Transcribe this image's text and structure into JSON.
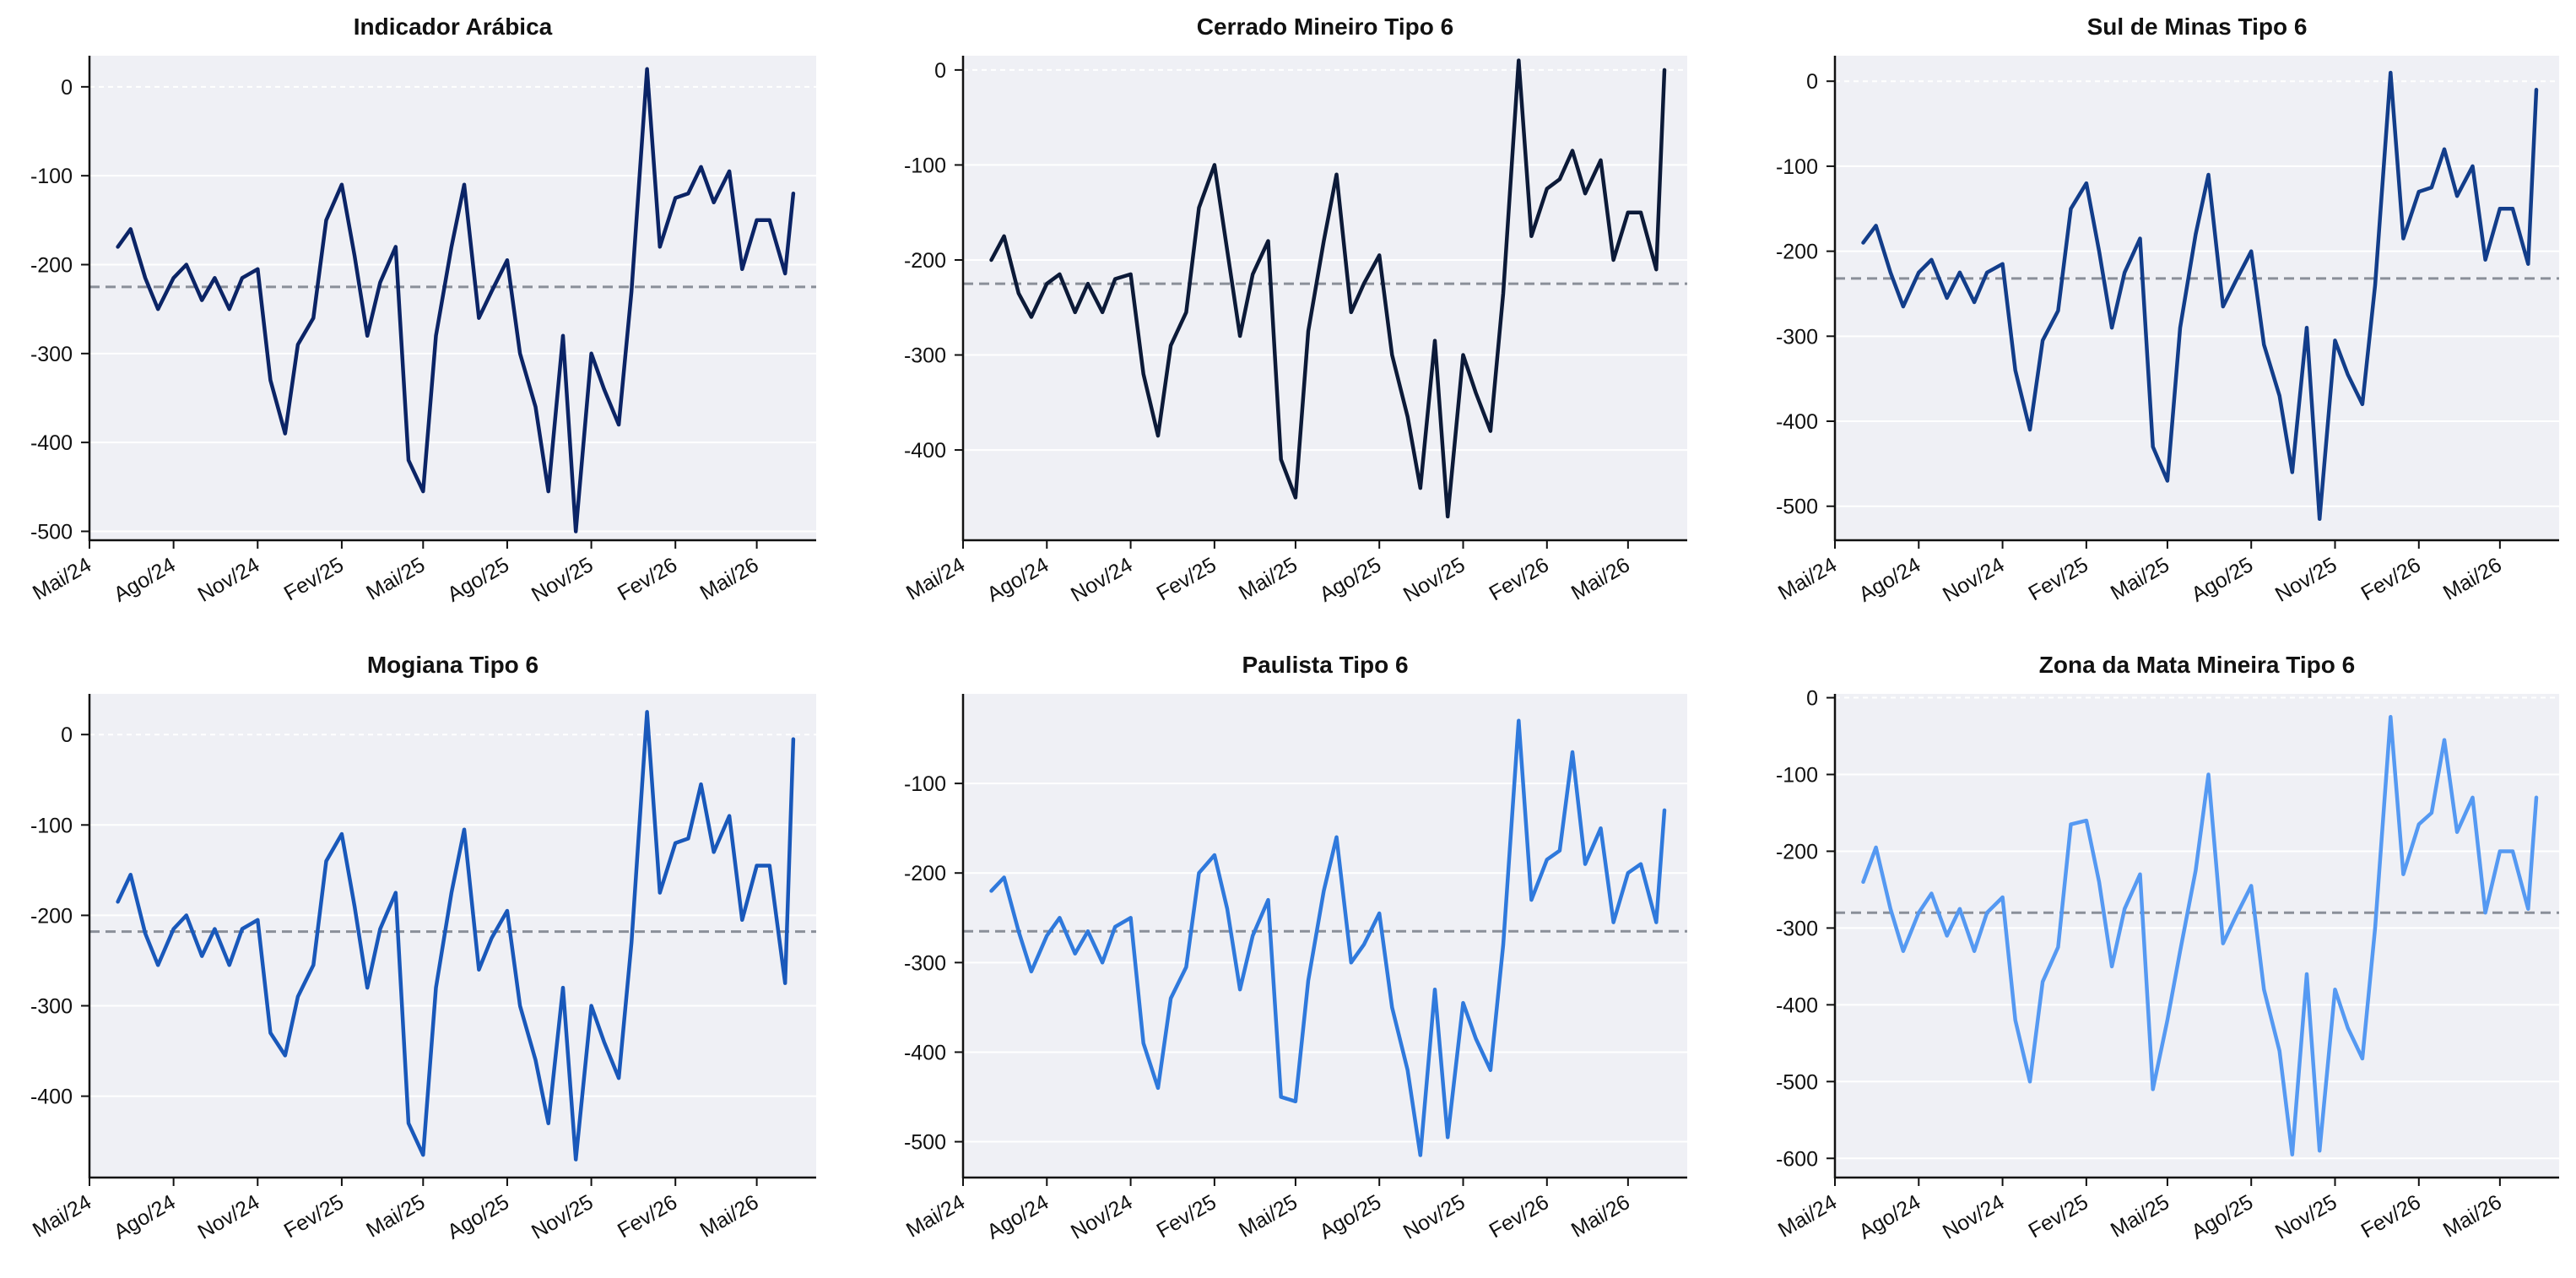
{
  "chart_data": [
    {
      "type": "line",
      "title": "Indicador Arábica",
      "color": "#0b2466",
      "mean": -225,
      "ylim": [
        -510,
        35
      ],
      "yticks": [
        0,
        -100,
        -200,
        -300,
        -400,
        -500
      ],
      "xlim": [
        "2024-05-01",
        "2026-07-05"
      ],
      "xticks": [
        "Mai/24",
        "Ago/24",
        "Nov/24",
        "Fev/25",
        "Mai/25",
        "Ago/25",
        "Nov/25",
        "Fev/26",
        "Mai/26"
      ],
      "series": [
        {
          "x": [
            "2024-06-01",
            "2024-06-15",
            "2024-07-01",
            "2024-07-15",
            "2024-08-01",
            "2024-08-15",
            "2024-09-01",
            "2024-09-15",
            "2024-10-01",
            "2024-10-15",
            "2024-11-01",
            "2024-11-15",
            "2024-12-01",
            "2024-12-15",
            "2025-01-01",
            "2025-01-15",
            "2025-02-01",
            "2025-02-15",
            "2025-03-01",
            "2025-03-15",
            "2025-04-01",
            "2025-04-15",
            "2025-05-01",
            "2025-05-15",
            "2025-06-01",
            "2025-06-15",
            "2025-07-01",
            "2025-07-15",
            "2025-08-01",
            "2025-08-15",
            "2025-09-01",
            "2025-09-15",
            "2025-10-01",
            "2025-10-15",
            "2025-11-01",
            "2025-11-15",
            "2025-12-01",
            "2025-12-15",
            "2026-01-01",
            "2026-01-15",
            "2026-02-01",
            "2026-02-15",
            "2026-03-01",
            "2026-03-15",
            "2026-04-01",
            "2026-04-15",
            "2026-05-01",
            "2026-05-15",
            "2026-06-01",
            "2026-06-10"
          ],
          "values": [
            -180,
            -160,
            -215,
            -250,
            -215,
            -200,
            -240,
            -215,
            -250,
            -215,
            -205,
            -330,
            -390,
            -290,
            -260,
            -150,
            -110,
            -190,
            -280,
            -220,
            -180,
            -420,
            -455,
            -280,
            -180,
            -110,
            -260,
            -230,
            -195,
            -300,
            -360,
            -455,
            -280,
            -500,
            -300,
            -340,
            -380,
            -230,
            20,
            -180,
            -125,
            -120,
            -90,
            -130,
            -95,
            -205,
            -150,
            -150,
            -210,
            -120
          ]
        }
      ]
    },
    {
      "type": "line",
      "title": "Cerrado Mineiro Tipo 6",
      "color": "#0c1a38",
      "mean": -225,
      "ylim": [
        -495,
        15
      ],
      "yticks": [
        0,
        -100,
        -200,
        -300,
        -400
      ],
      "xlim": [
        "2024-05-01",
        "2026-07-05"
      ],
      "xticks": [
        "Mai/24",
        "Ago/24",
        "Nov/24",
        "Fev/25",
        "Mai/25",
        "Ago/25",
        "Nov/25",
        "Fev/26",
        "Mai/26"
      ],
      "series": [
        {
          "x": [
            "2024-06-01",
            "2024-06-15",
            "2024-07-01",
            "2024-07-15",
            "2024-08-01",
            "2024-08-15",
            "2024-09-01",
            "2024-09-15",
            "2024-10-01",
            "2024-10-15",
            "2024-11-01",
            "2024-11-15",
            "2024-12-01",
            "2024-12-15",
            "2025-01-01",
            "2025-01-15",
            "2025-02-01",
            "2025-02-15",
            "2025-03-01",
            "2025-03-15",
            "2025-04-01",
            "2025-04-15",
            "2025-05-01",
            "2025-05-15",
            "2025-06-01",
            "2025-06-15",
            "2025-07-01",
            "2025-07-15",
            "2025-08-01",
            "2025-08-15",
            "2025-09-01",
            "2025-09-15",
            "2025-10-01",
            "2025-10-15",
            "2025-11-01",
            "2025-11-15",
            "2025-12-01",
            "2025-12-15",
            "2026-01-01",
            "2026-01-15",
            "2026-02-01",
            "2026-02-15",
            "2026-03-01",
            "2026-03-15",
            "2026-04-01",
            "2026-04-15",
            "2026-05-01",
            "2026-05-15",
            "2026-06-01",
            "2026-06-10"
          ],
          "values": [
            -200,
            -175,
            -235,
            -260,
            -225,
            -215,
            -255,
            -225,
            -255,
            -220,
            -215,
            -320,
            -385,
            -290,
            -255,
            -145,
            -100,
            -190,
            -280,
            -215,
            -180,
            -410,
            -450,
            -275,
            -180,
            -110,
            -255,
            -225,
            -195,
            -300,
            -365,
            -440,
            -285,
            -470,
            -300,
            -340,
            -380,
            -235,
            10,
            -175,
            -125,
            -115,
            -85,
            -130,
            -95,
            -200,
            -150,
            -150,
            -210,
            0
          ]
        }
      ]
    },
    {
      "type": "line",
      "title": "Sul de Minas Tipo 6",
      "color": "#123d8a",
      "mean": -232,
      "ylim": [
        -540,
        30
      ],
      "yticks": [
        0,
        -100,
        -200,
        -300,
        -400,
        -500
      ],
      "xlim": [
        "2024-05-01",
        "2026-07-05"
      ],
      "xticks": [
        "Mai/24",
        "Ago/24",
        "Nov/24",
        "Fev/25",
        "Mai/25",
        "Ago/25",
        "Nov/25",
        "Fev/26",
        "Mai/26"
      ],
      "series": [
        {
          "x": [
            "2024-06-01",
            "2024-06-15",
            "2024-07-01",
            "2024-07-15",
            "2024-08-01",
            "2024-08-15",
            "2024-09-01",
            "2024-09-15",
            "2024-10-01",
            "2024-10-15",
            "2024-11-01",
            "2024-11-15",
            "2024-12-01",
            "2024-12-15",
            "2025-01-01",
            "2025-01-15",
            "2025-02-01",
            "2025-02-15",
            "2025-03-01",
            "2025-03-15",
            "2025-04-01",
            "2025-04-15",
            "2025-05-01",
            "2025-05-15",
            "2025-06-01",
            "2025-06-15",
            "2025-07-01",
            "2025-07-15",
            "2025-08-01",
            "2025-08-15",
            "2025-09-01",
            "2025-09-15",
            "2025-10-01",
            "2025-10-15",
            "2025-11-01",
            "2025-11-15",
            "2025-12-01",
            "2025-12-15",
            "2026-01-01",
            "2026-01-15",
            "2026-02-01",
            "2026-02-15",
            "2026-03-01",
            "2026-03-15",
            "2026-04-01",
            "2026-04-15",
            "2026-05-01",
            "2026-05-15",
            "2026-06-01",
            "2026-06-10"
          ],
          "values": [
            -190,
            -170,
            -225,
            -265,
            -225,
            -210,
            -255,
            -225,
            -260,
            -225,
            -215,
            -340,
            -410,
            -305,
            -270,
            -150,
            -120,
            -200,
            -290,
            -225,
            -185,
            -430,
            -470,
            -290,
            -180,
            -110,
            -265,
            -235,
            -200,
            -310,
            -370,
            -460,
            -290,
            -515,
            -305,
            -345,
            -380,
            -240,
            10,
            -185,
            -130,
            -125,
            -80,
            -135,
            -100,
            -210,
            -150,
            -150,
            -215,
            -10
          ]
        }
      ]
    },
    {
      "type": "line",
      "title": "Mogiana Tipo 6",
      "color": "#1958ba",
      "mean": -218,
      "ylim": [
        -490,
        45
      ],
      "yticks": [
        0,
        -100,
        -200,
        -300,
        -400
      ],
      "xlim": [
        "2024-05-01",
        "2026-07-05"
      ],
      "xticks": [
        "Mai/24",
        "Ago/24",
        "Nov/24",
        "Fev/25",
        "Mai/25",
        "Ago/25",
        "Nov/25",
        "Fev/26",
        "Mai/26"
      ],
      "series": [
        {
          "x": [
            "2024-06-01",
            "2024-06-15",
            "2024-07-01",
            "2024-07-15",
            "2024-08-01",
            "2024-08-15",
            "2024-09-01",
            "2024-09-15",
            "2024-10-01",
            "2024-10-15",
            "2024-11-01",
            "2024-11-15",
            "2024-12-01",
            "2024-12-15",
            "2025-01-01",
            "2025-01-15",
            "2025-02-01",
            "2025-02-15",
            "2025-03-01",
            "2025-03-15",
            "2025-04-01",
            "2025-04-15",
            "2025-05-01",
            "2025-05-15",
            "2025-06-01",
            "2025-06-15",
            "2025-07-01",
            "2025-07-15",
            "2025-08-01",
            "2025-08-15",
            "2025-09-01",
            "2025-09-15",
            "2025-10-01",
            "2025-10-15",
            "2025-11-01",
            "2025-11-15",
            "2025-12-01",
            "2025-12-15",
            "2026-01-01",
            "2026-01-15",
            "2026-02-01",
            "2026-02-15",
            "2026-03-01",
            "2026-03-15",
            "2026-04-01",
            "2026-04-15",
            "2026-05-01",
            "2026-05-15",
            "2026-06-01",
            "2026-06-10"
          ],
          "values": [
            -185,
            -155,
            -220,
            -255,
            -215,
            -200,
            -245,
            -215,
            -255,
            -215,
            -205,
            -330,
            -355,
            -290,
            -255,
            -140,
            -110,
            -190,
            -280,
            -215,
            -175,
            -430,
            -465,
            -280,
            -175,
            -105,
            -260,
            -225,
            -195,
            -300,
            -360,
            -430,
            -280,
            -470,
            -300,
            -340,
            -380,
            -230,
            25,
            -175,
            -120,
            -115,
            -55,
            -130,
            -90,
            -205,
            -145,
            -145,
            -275,
            -5
          ]
        }
      ]
    },
    {
      "type": "line",
      "title": "Paulista Tipo 6",
      "color": "#2f79dc",
      "mean": -265,
      "ylim": [
        -540,
        0
      ],
      "yticks": [
        -100,
        -200,
        -300,
        -400,
        -500
      ],
      "xlim": [
        "2024-05-01",
        "2026-07-05"
      ],
      "xticks": [
        "Mai/24",
        "Ago/24",
        "Nov/24",
        "Fev/25",
        "Mai/25",
        "Ago/25",
        "Nov/25",
        "Fev/26",
        "Mai/26"
      ],
      "series": [
        {
          "x": [
            "2024-06-01",
            "2024-06-15",
            "2024-07-01",
            "2024-07-15",
            "2024-08-01",
            "2024-08-15",
            "2024-09-01",
            "2024-09-15",
            "2024-10-01",
            "2024-10-15",
            "2024-11-01",
            "2024-11-15",
            "2024-12-01",
            "2024-12-15",
            "2025-01-01",
            "2025-01-15",
            "2025-02-01",
            "2025-02-15",
            "2025-03-01",
            "2025-03-15",
            "2025-04-01",
            "2025-04-15",
            "2025-05-01",
            "2025-05-15",
            "2025-06-01",
            "2025-06-15",
            "2025-07-01",
            "2025-07-15",
            "2025-08-01",
            "2025-08-15",
            "2025-09-01",
            "2025-09-15",
            "2025-10-01",
            "2025-10-15",
            "2025-11-01",
            "2025-11-15",
            "2025-12-01",
            "2025-12-15",
            "2026-01-01",
            "2026-01-15",
            "2026-02-01",
            "2026-02-15",
            "2026-03-01",
            "2026-03-15",
            "2026-04-01",
            "2026-04-15",
            "2026-05-01",
            "2026-05-15",
            "2026-06-01",
            "2026-06-10"
          ],
          "values": [
            -220,
            -205,
            -265,
            -310,
            -270,
            -250,
            -290,
            -265,
            -300,
            -260,
            -250,
            -390,
            -440,
            -340,
            -305,
            -200,
            -180,
            -240,
            -330,
            -270,
            -230,
            -450,
            -455,
            -320,
            -220,
            -160,
            -300,
            -280,
            -245,
            -350,
            -420,
            -515,
            -330,
            -495,
            -345,
            -385,
            -420,
            -280,
            -30,
            -230,
            -185,
            -175,
            -65,
            -190,
            -150,
            -255,
            -200,
            -190,
            -255,
            -130
          ]
        }
      ]
    },
    {
      "type": "line",
      "title": "Zona da Mata Mineira Tipo 6",
      "color": "#5599f2",
      "mean": -280,
      "ylim": [
        -625,
        5
      ],
      "yticks": [
        0,
        -100,
        -200,
        -300,
        -400,
        -500,
        -600
      ],
      "xlim": [
        "2024-05-01",
        "2026-07-05"
      ],
      "xticks": [
        "Mai/24",
        "Ago/24",
        "Nov/24",
        "Fev/25",
        "Mai/25",
        "Ago/25",
        "Nov/25",
        "Fev/26",
        "Mai/26"
      ],
      "series": [
        {
          "x": [
            "2024-06-01",
            "2024-06-15",
            "2024-07-01",
            "2024-07-15",
            "2024-08-01",
            "2024-08-15",
            "2024-09-01",
            "2024-09-15",
            "2024-10-01",
            "2024-10-15",
            "2024-11-01",
            "2024-11-15",
            "2024-12-01",
            "2024-12-15",
            "2025-01-01",
            "2025-01-15",
            "2025-02-01",
            "2025-02-15",
            "2025-03-01",
            "2025-03-15",
            "2025-04-01",
            "2025-04-15",
            "2025-05-01",
            "2025-05-15",
            "2025-06-01",
            "2025-06-15",
            "2025-07-01",
            "2025-07-15",
            "2025-08-01",
            "2025-08-15",
            "2025-09-01",
            "2025-09-15",
            "2025-10-01",
            "2025-10-15",
            "2025-11-01",
            "2025-11-15",
            "2025-12-01",
            "2025-12-15",
            "2026-01-01",
            "2026-01-15",
            "2026-02-01",
            "2026-02-15",
            "2026-03-01",
            "2026-03-15",
            "2026-04-01",
            "2026-04-15",
            "2026-05-01",
            "2026-05-15",
            "2026-06-01",
            "2026-06-10"
          ],
          "values": [
            -240,
            -195,
            -275,
            -330,
            -280,
            -255,
            -310,
            -275,
            -330,
            -280,
            -260,
            -420,
            -500,
            -370,
            -325,
            -165,
            -160,
            -240,
            -350,
            -275,
            -230,
            -510,
            -420,
            -330,
            -225,
            -100,
            -320,
            -285,
            -245,
            -380,
            -460,
            -595,
            -360,
            -590,
            -380,
            -430,
            -470,
            -300,
            -25,
            -230,
            -165,
            -150,
            -55,
            -175,
            -130,
            -280,
            -200,
            -200,
            -275,
            -130
          ]
        }
      ]
    }
  ]
}
